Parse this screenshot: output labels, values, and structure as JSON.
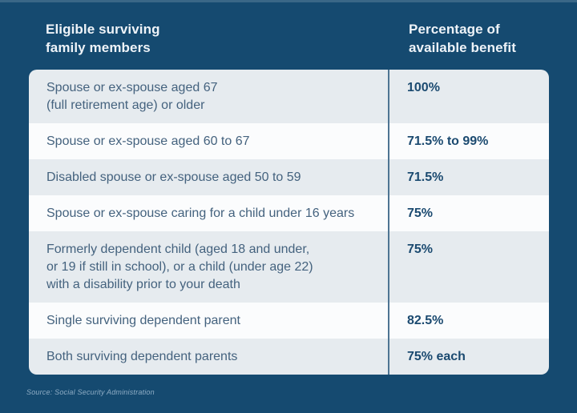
{
  "page": {
    "source_note": "Source: Social Security Administration",
    "colors": {
      "background": "#154a70",
      "header_text": "#eef3f8",
      "row_alt": "#e6ebef",
      "row_plain": "#fbfcfd",
      "column_divider": "#4e7492",
      "member_text": "#44627e",
      "benefit_text": "#1b4a70",
      "source_text": "#8fadc5"
    }
  },
  "table": {
    "headers": [
      {
        "label": "Eligible surviving\nfamily members"
      },
      {
        "label": "Percentage of\navailable benefit"
      }
    ],
    "rows": [
      {
        "member": "Spouse or ex-spouse aged 67\n(full retirement age) or older",
        "benefit": "100%"
      },
      {
        "member": "Spouse or ex-spouse aged 60 to 67",
        "benefit": "71.5% to 99%"
      },
      {
        "member": "Disabled spouse or ex-spouse aged 50 to 59",
        "benefit": "71.5%"
      },
      {
        "member": "Spouse or ex-spouse caring for a child under 16 years",
        "benefit": "75%"
      },
      {
        "member": "Formerly dependent child (aged 18 and under,\nor 19 if still in school), or a child (under age 22)\nwith a disability prior to your death",
        "benefit": "75%"
      },
      {
        "member": "Single surviving dependent parent",
        "benefit": "82.5%"
      },
      {
        "member": "Both surviving dependent parents",
        "benefit": "75% each"
      }
    ]
  },
  "chart_data": {
    "type": "table",
    "title": "",
    "columns": [
      "Eligible surviving family members",
      "Percentage of available benefit"
    ],
    "rows": [
      [
        "Spouse or ex-spouse aged 67 (full retirement age) or older",
        "100%"
      ],
      [
        "Spouse or ex-spouse aged 60 to 67",
        "71.5% to 99%"
      ],
      [
        "Disabled spouse or ex-spouse aged 50 to 59",
        "71.5%"
      ],
      [
        "Spouse or ex-spouse caring for a child under 16 years",
        "75%"
      ],
      [
        "Formerly dependent child (aged 18 and under, or 19 if still in school), or a child (under age 22) with a disability prior to your death",
        "75%"
      ],
      [
        "Single surviving dependent parent",
        "82.5%"
      ],
      [
        "Both surviving dependent parents",
        "75% each"
      ]
    ],
    "source": "Source: Social Security Administration"
  }
}
